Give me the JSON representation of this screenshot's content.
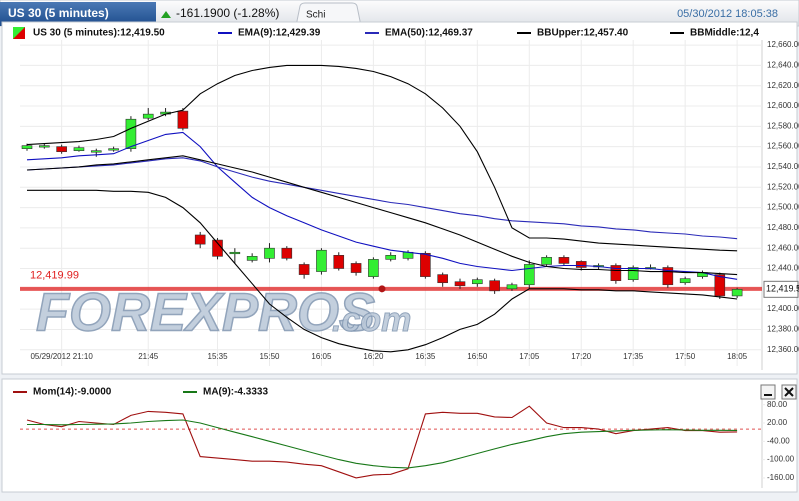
{
  "header": {
    "title": "US 30 (5 minutes)",
    "change": "-161.1900 (-1.28%)",
    "tab": "Schi",
    "timestamp": "05/30/2012 18:05:38"
  },
  "chart_data": [
    {
      "type": "candlestick",
      "watermark": "FOREXPROS",
      "watermark_suffix": ".com",
      "categories": [
        null,
        null,
        "05/29/2012 21:10",
        null,
        null,
        null,
        null,
        "21:45",
        null,
        null,
        null,
        "15:35",
        null,
        null,
        "15:50",
        null,
        null,
        "16:05",
        null,
        null,
        "16:20",
        null,
        null,
        "16:35",
        null,
        null,
        "16:50",
        null,
        null,
        "17:05",
        null,
        null,
        "17:20",
        null,
        null,
        "17:35",
        null,
        null,
        "17:50",
        null,
        null,
        "18:05"
      ],
      "series": [
        {
          "type": "candlestick",
          "name": "US 30 (5 minutes):12,419.50",
          "up_color": "#33ee33",
          "down_color": "#dd0000",
          "open": [
            12558,
            12560,
            12560,
            12556,
            12555,
            12557,
            12558,
            12588,
            12592,
            12595,
            12473,
            12468,
            12455,
            12448,
            12450,
            12460,
            12444,
            12437,
            12453,
            12445,
            12432,
            12449,
            12450,
            12455,
            12434,
            12427,
            12425,
            12428,
            12420,
            12424,
            12444,
            12451,
            12447,
            12442,
            12443,
            12429,
            12441,
            12441,
            12426,
            12432,
            12434,
            12413
          ],
          "high": [
            12563,
            12563,
            12562,
            12561,
            12558,
            12560,
            12590,
            12598,
            12598,
            12598,
            12476,
            12470,
            12460,
            12455,
            12465,
            12462,
            12446,
            12460,
            12456,
            12447,
            12451,
            12456,
            12458,
            12457,
            12436,
            12430,
            12431,
            12430,
            12426,
            12448,
            12453,
            12453,
            12448,
            12445,
            12445,
            12443,
            12444,
            12443,
            12432,
            12438,
            12436,
            12421
          ],
          "low": [
            12556,
            12558,
            12553,
            12555,
            12550,
            12555,
            12555,
            12586,
            12590,
            12576,
            12460,
            12449,
            12445,
            12446,
            12446,
            12448,
            12430,
            12434,
            12438,
            12433,
            12430,
            12447,
            12448,
            12430,
            12422,
            12420,
            12422,
            12415,
            12418,
            12420,
            12442,
            12443,
            12438,
            12439,
            12425,
            12427,
            12439,
            12421,
            12424,
            12430,
            12410,
            12411
          ],
          "close": [
            12561,
            12561,
            12555,
            12559,
            12556,
            12558,
            12587,
            12592,
            12594,
            12578,
            12464,
            12452,
            12456,
            12452,
            12460,
            12450,
            12434,
            12458,
            12440,
            12436,
            12449,
            12453,
            12456,
            12432,
            12426,
            12423,
            12429,
            12418,
            12424,
            12444,
            12451,
            12445,
            12441,
            12443,
            12428,
            12441,
            12441,
            12424,
            12430,
            12436,
            12413,
            12419.5
          ]
        },
        {
          "type": "line",
          "name": "EMA(9):12,429.39",
          "color": "#1010c0",
          "values": [
            12547,
            12548,
            12549,
            12551,
            12552,
            12553,
            12560,
            12566,
            12572,
            12574,
            12560,
            12540,
            12525,
            12510,
            12500,
            12492,
            12485,
            12478,
            12472,
            12466,
            12462,
            12458,
            12456,
            12454,
            12450,
            12445,
            12442,
            12440,
            12438,
            12440,
            12442,
            12443,
            12443,
            12442,
            12440,
            12440,
            12440,
            12438,
            12437,
            12436,
            12432,
            12429.39
          ]
        },
        {
          "type": "line",
          "name": "EMA(50):12,469.37",
          "color": "#2a2ab8",
          "values": [
            12537,
            12538,
            12539,
            12540,
            12541,
            12542,
            12544,
            12546,
            12548,
            12549,
            12546,
            12540,
            12535,
            12530,
            12526,
            12523,
            12520,
            12517,
            12514,
            12511,
            12508,
            12505,
            12503,
            12500,
            12497,
            12494,
            12492,
            12489,
            12487,
            12486,
            12485,
            12484,
            12482,
            12481,
            12479,
            12478,
            12476,
            12475,
            12474,
            12472,
            12471,
            12469.37
          ]
        },
        {
          "type": "line",
          "name": "BBUpper:12,457.40",
          "color": "#000000",
          "values": [
            12562,
            12563,
            12564,
            12565,
            12567,
            12570,
            12578,
            12585,
            12592,
            12596,
            12612,
            12622,
            12630,
            12635,
            12638,
            12640,
            12640,
            12640,
            12639,
            12637,
            12634,
            12629,
            12622,
            12612,
            12598,
            12580,
            12555,
            12520,
            12480,
            12470,
            12470,
            12469,
            12467,
            12465,
            12464,
            12463,
            12462,
            12461,
            12460,
            12459,
            12458,
            12457.4
          ]
        },
        {
          "type": "line",
          "name": "BBMiddle:12,4",
          "color": "#000000",
          "values": [
            12537,
            12538,
            12539,
            12540,
            12542,
            12543,
            12545,
            12547,
            12549,
            12551,
            12547,
            12543,
            12539,
            12535,
            12530,
            12525,
            12520,
            12515,
            12510,
            12505,
            12500,
            12495,
            12490,
            12485,
            12479,
            12473,
            12466,
            12459,
            12452,
            12446,
            12442,
            12440,
            12439,
            12439,
            12438,
            12438,
            12437,
            12437,
            12436,
            12436,
            12435,
            12434
          ]
        },
        {
          "type": "line",
          "color": "#000000",
          "values": [
            12517,
            12517,
            12517,
            12517,
            12517,
            12516,
            12516,
            12515,
            12510,
            12500,
            12485,
            12465,
            12445,
            12425,
            12405,
            12392,
            12380,
            12372,
            12366,
            12362,
            12359,
            12358,
            12360,
            12365,
            12372,
            12380,
            12385,
            12395,
            12410,
            12420,
            12420,
            12420,
            12419,
            12419,
            12418,
            12418,
            12417,
            12416,
            12415,
            12414,
            12412,
            12410
          ]
        }
      ],
      "ylim": [
        12344,
        12665
      ],
      "yticks": [
        {
          "value": 12360,
          "label": "12,360.00"
        },
        {
          "value": 12380,
          "label": "12,380.00"
        },
        {
          "value": 12400,
          "label": "12,400.00"
        },
        {
          "value": 12420,
          "label": "12,420.00"
        },
        {
          "value": 12440,
          "label": "12,440.00"
        },
        {
          "value": 12460,
          "label": "12,460.00"
        },
        {
          "value": 12480,
          "label": "12,480.00"
        },
        {
          "value": 12500,
          "label": "12,500.00"
        },
        {
          "value": 12520,
          "label": "12,520.00"
        },
        {
          "value": 12540,
          "label": "12,540.00"
        },
        {
          "value": 12560,
          "label": "12,560.00"
        },
        {
          "value": 12580,
          "label": "12,580.00"
        },
        {
          "value": 12600,
          "label": "12,600.00"
        },
        {
          "value": 12620,
          "label": "12,620.00"
        },
        {
          "value": 12640,
          "label": "12,640.00"
        },
        {
          "value": 12660,
          "label": "12,660.00"
        }
      ],
      "hline": {
        "value": 12419.99,
        "label": "12,419.99",
        "color": "#e02020"
      },
      "price_tag": {
        "value": 12419.5,
        "label": "12,419.5"
      },
      "grid": true
    },
    {
      "type": "line",
      "series": [
        {
          "type": "line",
          "name": "Mom(14):-9.0000",
          "color": "#a01010",
          "values": [
            30,
            15,
            8,
            25,
            20,
            15,
            45,
            58,
            55,
            50,
            -90,
            -95,
            -100,
            -105,
            -105,
            -108,
            -115,
            -120,
            -140,
            -160,
            -150,
            -148,
            -130,
            50,
            55,
            52,
            52,
            40,
            38,
            75,
            20,
            5,
            5,
            0,
            -15,
            -5,
            0,
            5,
            -5,
            -5,
            -10,
            -9
          ]
        },
        {
          "type": "line",
          "name": "MA(9):-4.3333",
          "color": "#187818",
          "values": [
            15,
            15,
            14,
            15,
            16,
            17,
            20,
            25,
            28,
            30,
            20,
            5,
            -10,
            -25,
            -40,
            -55,
            -70,
            -85,
            -100,
            -112,
            -120,
            -125,
            -127,
            -120,
            -110,
            -95,
            -80,
            -65,
            -50,
            -38,
            -25,
            -15,
            -10,
            -8,
            -6,
            -4,
            -3,
            -2,
            -3,
            -4,
            -4,
            -4.3333
          ]
        }
      ],
      "ylim": [
        -193,
        102
      ],
      "yticks": [
        {
          "value": 80,
          "label": "80.00"
        },
        {
          "value": 20,
          "label": "20.00"
        },
        {
          "value": -40,
          "label": "-40.00"
        },
        {
          "value": -100,
          "label": "-100.00"
        },
        {
          "value": -160,
          "label": "-160.00"
        }
      ],
      "hline": {
        "value": 0,
        "color": "#e05050"
      },
      "grid": false
    }
  ]
}
